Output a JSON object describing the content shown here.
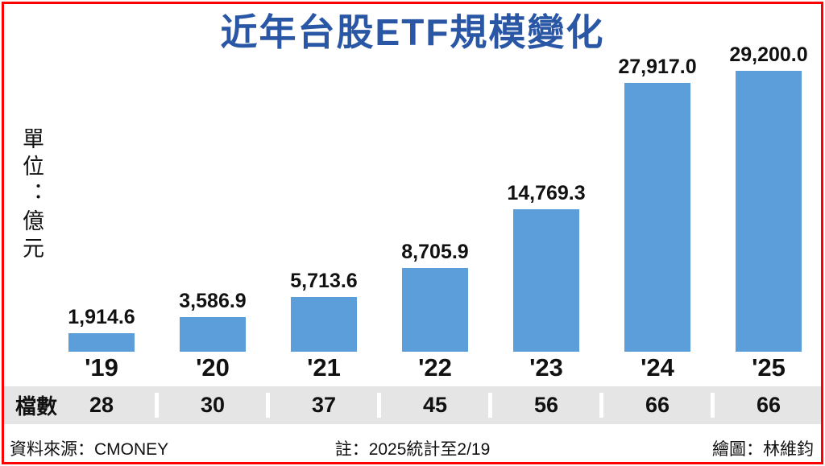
{
  "page": {
    "title": "近年台股ETF規模變化",
    "unit_label": "單位：億元",
    "footer": {
      "source": "資料來源：CMONEY",
      "note": "註：2025統計至2/19",
      "credit": "繪圖：林維鈞"
    }
  },
  "colors": {
    "title_blue": "#2a57a5",
    "bar_blue": "#5c9eda",
    "band_gray": "#e5e5e5",
    "frame_red": "#ff0000"
  },
  "chart_data": {
    "type": "bar",
    "title": "近年台股ETF規模變化",
    "ylabel": "單位：億元",
    "unit": "億元",
    "categories": [
      "'19",
      "'20",
      "'21",
      "'22",
      "'23",
      "'24",
      "'25"
    ],
    "values": [
      1914.6,
      3586.9,
      5713.6,
      8705.9,
      14769.3,
      27917.0,
      29200.0
    ],
    "value_labels": [
      "1,914.6",
      "3,586.9",
      "5,713.6",
      "8,705.9",
      "14,769.3",
      "27,917.0",
      "29,200.0"
    ],
    "counts_label": "檔數",
    "counts": [
      "28",
      "30",
      "37",
      "45",
      "56",
      "66",
      "66"
    ],
    "ylim": [
      0,
      29200
    ],
    "grid": false,
    "legend": "none",
    "bar_color": "#5c9eda"
  }
}
